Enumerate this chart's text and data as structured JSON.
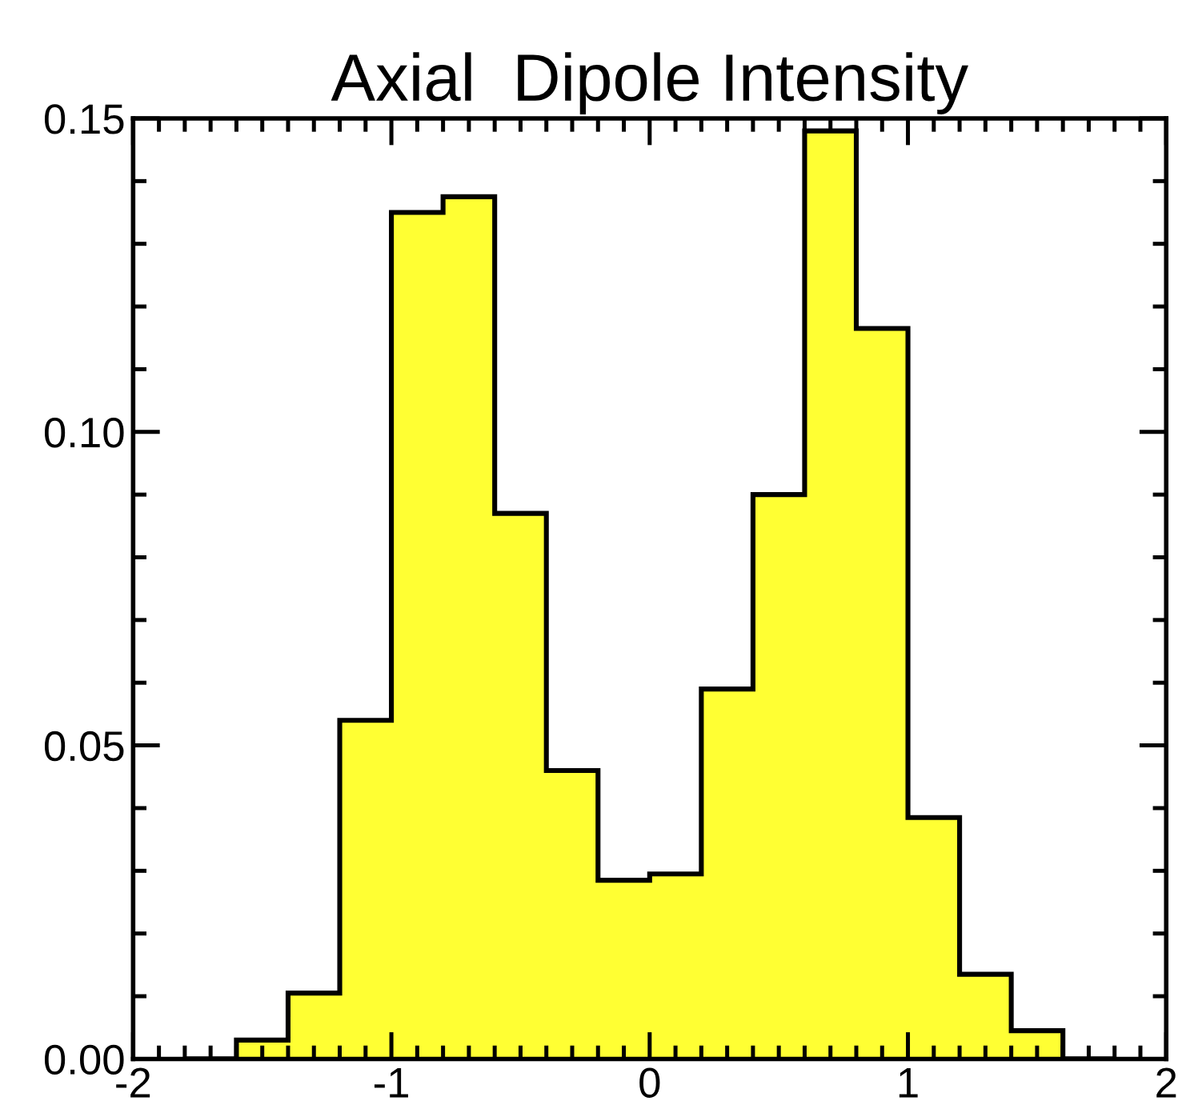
{
  "chart_data": {
    "type": "histogram",
    "title": "Axial  Dipole Intensity",
    "bins": [
      -1.8,
      -1.6,
      -1.4,
      -1.2,
      -1.0,
      -0.8,
      -0.6,
      -0.4,
      -0.2,
      0.0,
      0.2,
      0.4,
      0.6,
      0.8,
      1.0,
      1.2,
      1.4,
      1.6,
      1.8
    ],
    "values": [
      0,
      0.003,
      0.0105,
      0.054,
      0.135,
      0.1375,
      0.087,
      0.046,
      0.0285,
      0.0295,
      0.059,
      0.09,
      0.148,
      0.1165,
      0.0385,
      0.0135,
      0.0045,
      0
    ],
    "color": "#ffff33",
    "xlim": [
      -2,
      2
    ],
    "xticks": [
      -2,
      -1,
      0,
      1,
      2
    ],
    "ylim": [
      0,
      0.15
    ],
    "yticks": [
      {
        "value": 0,
        "label": "0.00"
      },
      {
        "value": 0.05,
        "label": "0.05"
      },
      {
        "value": 0.1,
        "label": "0.10"
      },
      {
        "value": 0.15,
        "label": "0.15"
      }
    ],
    "grid": false,
    "legend": false
  }
}
